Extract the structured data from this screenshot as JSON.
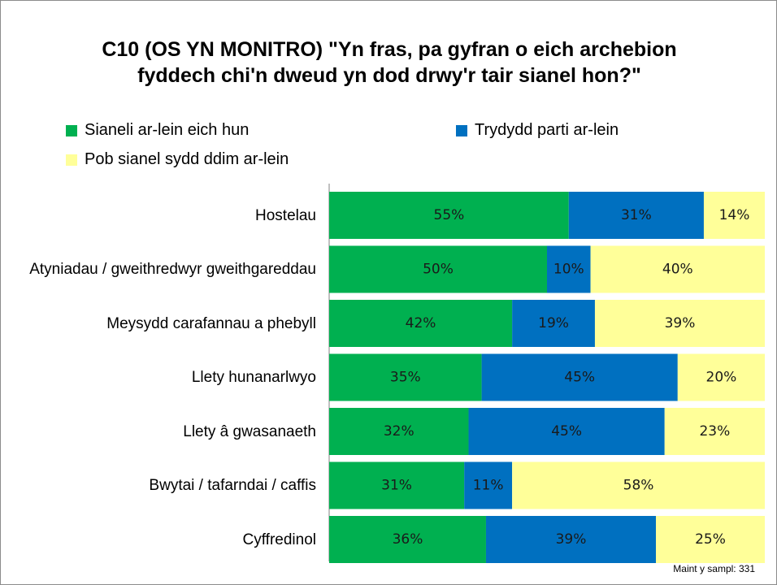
{
  "chart_data": {
    "type": "stacked-bar",
    "title": "C10 (OS YN MONITRO) \"Yn fras, pa gyfran o eich archebion fyddech chi'n dweud yn dod drwy'r tair sianel hon?\"",
    "categories": [
      "Hostelau",
      "Atyniadau / gweithredwyr gweithgareddau",
      "Meysydd carafannau a phebyll",
      "Llety hunanarlwyo",
      "Llety â gwasanaeth",
      "Bwytai / tafarndai / caffis",
      "Cyffredinol"
    ],
    "series": [
      {
        "name": "Sianeli ar-lein eich hun",
        "color": "#00b050",
        "values": [
          55,
          50,
          42,
          35,
          32,
          31,
          36
        ],
        "value_labels": [
          "55%",
          "50%",
          "42%",
          "35%",
          "32%",
          "31%",
          "36%"
        ]
      },
      {
        "name": "Trydydd parti ar-lein",
        "color": "#0070c0",
        "values": [
          31,
          10,
          19,
          45,
          45,
          11,
          39
        ],
        "value_labels": [
          "31%",
          "10%",
          "19%",
          "45%",
          "45%",
          "11%",
          "39%"
        ]
      },
      {
        "name": "Pob sianel sydd ddim ar-lein",
        "color": "#ffff99",
        "values": [
          14,
          40,
          39,
          20,
          23,
          58,
          25
        ],
        "value_labels": [
          "14%",
          "40%",
          "39%",
          "20%",
          "23%",
          "58%",
          "25%"
        ]
      }
    ],
    "xlim": [
      0,
      100
    ],
    "annotation": "Maint y sampl: 331"
  }
}
